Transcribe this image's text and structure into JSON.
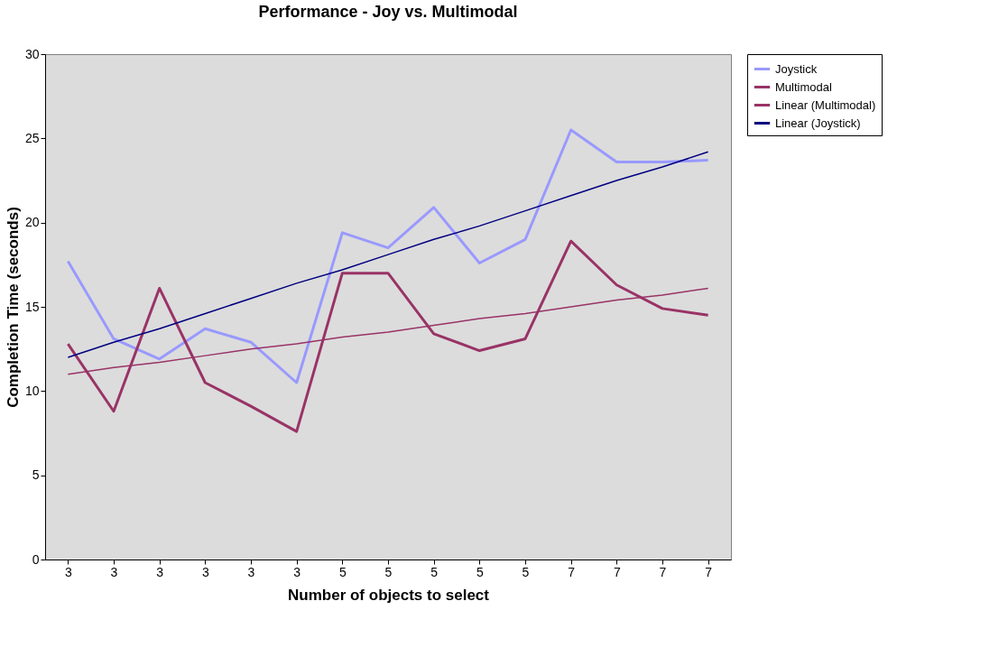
{
  "chart_data": {
    "type": "line",
    "title": "Performance - Joy vs. Multimodal",
    "xlabel": "Number of objects to select",
    "ylabel": "Completion Time (seconds)",
    "categories": [
      "3",
      "3",
      "3",
      "3",
      "3",
      "3",
      "5",
      "5",
      "5",
      "5",
      "5",
      "7",
      "7",
      "7",
      "7"
    ],
    "series": [
      {
        "name": "Joystick",
        "color": "#9999ff",
        "values": [
          17.7,
          13.1,
          11.9,
          13.7,
          12.9,
          10.5,
          19.4,
          18.5,
          20.9,
          17.6,
          19.0,
          25.5,
          23.6,
          23.6,
          23.7
        ]
      },
      {
        "name": "Multimodal",
        "color": "#993366",
        "values": [
          12.8,
          8.8,
          16.1,
          10.5,
          9.1,
          7.6,
          17.0,
          17.0,
          13.4,
          12.4,
          13.1,
          18.9,
          16.3,
          14.9,
          14.5
        ]
      },
      {
        "name": "Linear (Multimodal)",
        "color": "#993366",
        "values": [
          11.0,
          11.4,
          11.7,
          12.1,
          12.5,
          12.8,
          13.2,
          13.5,
          13.9,
          14.3,
          14.6,
          15.0,
          15.4,
          15.7,
          16.1
        ]
      },
      {
        "name": "Linear (Joystick)",
        "color": "#000080",
        "values": [
          12.0,
          12.9,
          13.7,
          14.6,
          15.5,
          16.4,
          17.2,
          18.1,
          19.0,
          19.8,
          20.7,
          21.6,
          22.5,
          23.3,
          24.2
        ]
      }
    ],
    "ylim": [
      0,
      30
    ],
    "yticks": [
      0,
      5,
      10,
      15,
      20,
      25,
      30
    ],
    "grid": false,
    "legend": "right"
  }
}
